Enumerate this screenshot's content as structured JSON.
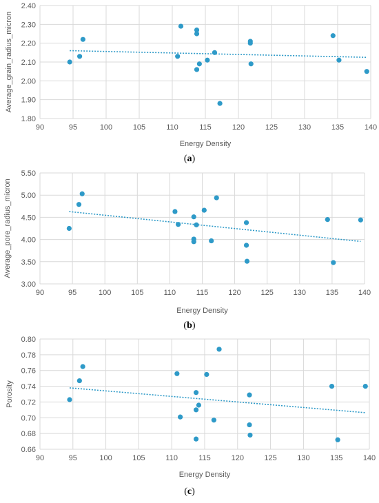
{
  "chart_data": [
    {
      "type": "scatter",
      "caption_open": "(",
      "caption_letter": "a",
      "caption_close": ")",
      "xlabel": "Energy Density",
      "ylabel": "Average_grain_radius_micron",
      "xlim": [
        90,
        140
      ],
      "ylim": [
        1.8,
        2.4
      ],
      "xticks": [
        "90",
        "95",
        "100",
        "105",
        "110",
        "115",
        "120",
        "125",
        "130",
        "135",
        "140"
      ],
      "yticks": [
        "1.80",
        "1.90",
        "2.00",
        "2.10",
        "2.20",
        "2.30",
        "2.40"
      ],
      "grid": true,
      "trendline": "linear",
      "point_color": "#2E9AC8",
      "points": [
        {
          "x": 94.5,
          "y": 2.1
        },
        {
          "x": 96.0,
          "y": 2.13
        },
        {
          "x": 96.5,
          "y": 2.22
        },
        {
          "x": 110.8,
          "y": 2.13
        },
        {
          "x": 111.3,
          "y": 2.29
        },
        {
          "x": 113.7,
          "y": 2.27
        },
        {
          "x": 113.7,
          "y": 2.25
        },
        {
          "x": 113.7,
          "y": 2.06
        },
        {
          "x": 114.1,
          "y": 2.09
        },
        {
          "x": 115.3,
          "y": 2.11
        },
        {
          "x": 116.4,
          "y": 2.15
        },
        {
          "x": 117.2,
          "y": 1.88
        },
        {
          "x": 121.8,
          "y": 2.21
        },
        {
          "x": 121.8,
          "y": 2.2
        },
        {
          "x": 121.9,
          "y": 2.09
        },
        {
          "x": 134.3,
          "y": 2.24
        },
        {
          "x": 135.2,
          "y": 2.11
        },
        {
          "x": 139.4,
          "y": 2.05
        }
      ]
    },
    {
      "type": "scatter",
      "caption_open": "(",
      "caption_letter": "b",
      "caption_close": ")",
      "xlabel": "Energy Density",
      "ylabel": "Average_pore_radius_micron",
      "xlim": [
        90,
        140
      ],
      "ylim": [
        3.0,
        5.5
      ],
      "xticks": [
        "90",
        "95",
        "100",
        "105",
        "110",
        "115",
        "120",
        "125",
        "130",
        "135",
        "140"
      ],
      "yticks": [
        "3.00",
        "3.50",
        "4.00",
        "4.50",
        "5.00",
        "5.50"
      ],
      "grid": true,
      "trendline": "linear",
      "point_color": "#2E9AC8",
      "points": [
        {
          "x": 94.5,
          "y": 4.25
        },
        {
          "x": 96.0,
          "y": 4.79
        },
        {
          "x": 96.5,
          "y": 5.03
        },
        {
          "x": 110.8,
          "y": 4.63
        },
        {
          "x": 111.3,
          "y": 4.34
        },
        {
          "x": 113.7,
          "y": 4.51
        },
        {
          "x": 113.7,
          "y": 4.01
        },
        {
          "x": 113.7,
          "y": 3.95
        },
        {
          "x": 114.1,
          "y": 4.33
        },
        {
          "x": 115.3,
          "y": 4.66
        },
        {
          "x": 116.4,
          "y": 3.97
        },
        {
          "x": 117.2,
          "y": 4.94
        },
        {
          "x": 121.8,
          "y": 4.38
        },
        {
          "x": 121.8,
          "y": 3.87
        },
        {
          "x": 121.9,
          "y": 3.51
        },
        {
          "x": 134.3,
          "y": 4.45
        },
        {
          "x": 135.2,
          "y": 3.48
        },
        {
          "x": 139.4,
          "y": 4.44
        }
      ]
    },
    {
      "type": "scatter",
      "caption_open": "(",
      "caption_letter": "c",
      "caption_close": ")",
      "xlabel": "Energy Density",
      "ylabel": "Porosity",
      "xlim": [
        90,
        140
      ],
      "ylim": [
        0.66,
        0.8
      ],
      "xticks": [
        "90",
        "95",
        "100",
        "105",
        "110",
        "115",
        "120",
        "125",
        "130",
        "135",
        "140"
      ],
      "yticks": [
        "0.66",
        "0.68",
        "0.70",
        "0.72",
        "0.74",
        "0.76",
        "0.78",
        "0.80"
      ],
      "grid": true,
      "trendline": "linear",
      "point_color": "#2E9AC8",
      "points": [
        {
          "x": 94.5,
          "y": 0.723
        },
        {
          "x": 96.0,
          "y": 0.747
        },
        {
          "x": 96.5,
          "y": 0.765
        },
        {
          "x": 110.8,
          "y": 0.756
        },
        {
          "x": 111.3,
          "y": 0.701
        },
        {
          "x": 113.7,
          "y": 0.732
        },
        {
          "x": 113.7,
          "y": 0.71
        },
        {
          "x": 113.7,
          "y": 0.673
        },
        {
          "x": 114.1,
          "y": 0.716
        },
        {
          "x": 115.3,
          "y": 0.755
        },
        {
          "x": 116.4,
          "y": 0.697
        },
        {
          "x": 117.2,
          "y": 0.787
        },
        {
          "x": 121.8,
          "y": 0.729
        },
        {
          "x": 121.8,
          "y": 0.691
        },
        {
          "x": 121.9,
          "y": 0.678
        },
        {
          "x": 134.3,
          "y": 0.74
        },
        {
          "x": 135.2,
          "y": 0.672
        },
        {
          "x": 139.4,
          "y": 0.74
        }
      ]
    }
  ]
}
